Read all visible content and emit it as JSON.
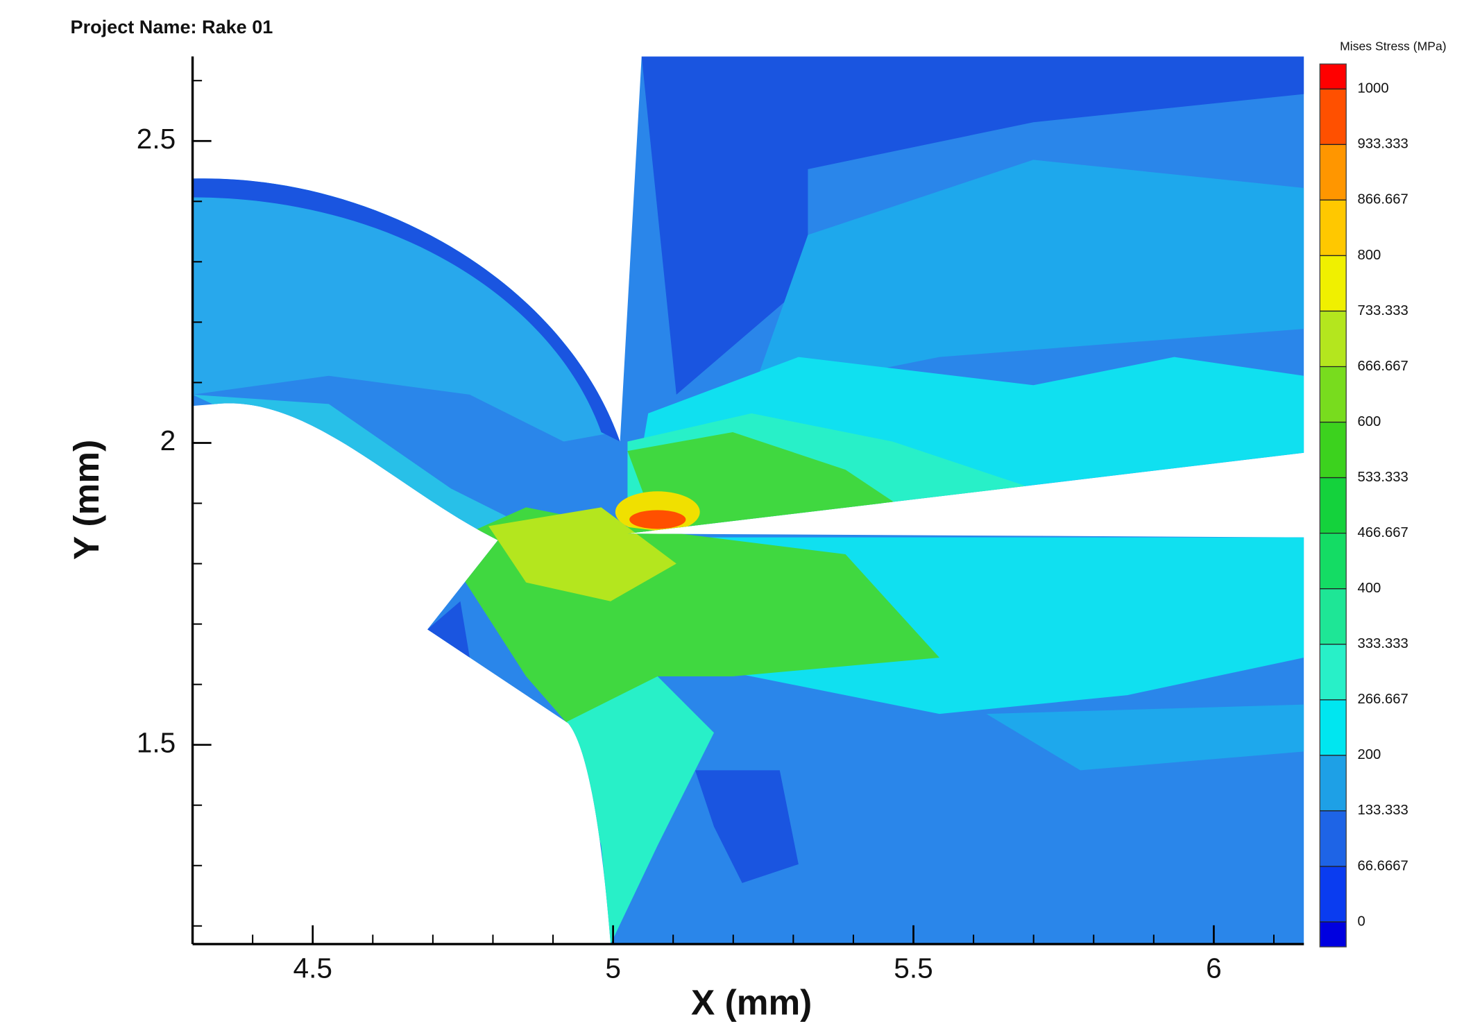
{
  "chart_data": {
    "type": "contour",
    "project_name": "Project Name: Rake 01",
    "xlabel": "X (mm)",
    "ylabel": "Y (mm)",
    "xlim": [
      4.3,
      6.15
    ],
    "ylim": [
      1.17,
      2.64
    ],
    "xticks": [
      4.5,
      5,
      5.5,
      6
    ],
    "yticks": [
      1.5,
      2,
      2.5
    ],
    "xminorticks": [
      4.4,
      4.6,
      4.7,
      4.8,
      4.9,
      5.1,
      5.2,
      5.3,
      5.4,
      5.6,
      5.7,
      5.8,
      5.9,
      6.1
    ],
    "yminorticks": [
      1.2,
      1.3,
      1.4,
      1.6,
      1.7,
      1.8,
      1.9,
      2.1,
      2.2,
      2.3,
      2.4,
      2.6
    ],
    "colorbar": {
      "label": "Mises Stress (MPa)",
      "levels": [
        0,
        66.6667,
        133.333,
        200,
        266.667,
        333.333,
        400,
        466.667,
        533.333,
        600,
        666.667,
        733.333,
        800,
        866.667,
        933.333,
        1000
      ],
      "lim": [
        -30,
        1030
      ],
      "colors": [
        "#0000e0",
        "#0a3cf0",
        "#1e64e6",
        "#1ea0e6",
        "#00e6f0",
        "#28f0c8",
        "#1ee696",
        "#14dc64",
        "#14d23c",
        "#3cd21e",
        "#78dc1e",
        "#b4e61e",
        "#f0f000",
        "#ffc800",
        "#ff9600",
        "#ff5000",
        "#ff0000"
      ]
    }
  }
}
